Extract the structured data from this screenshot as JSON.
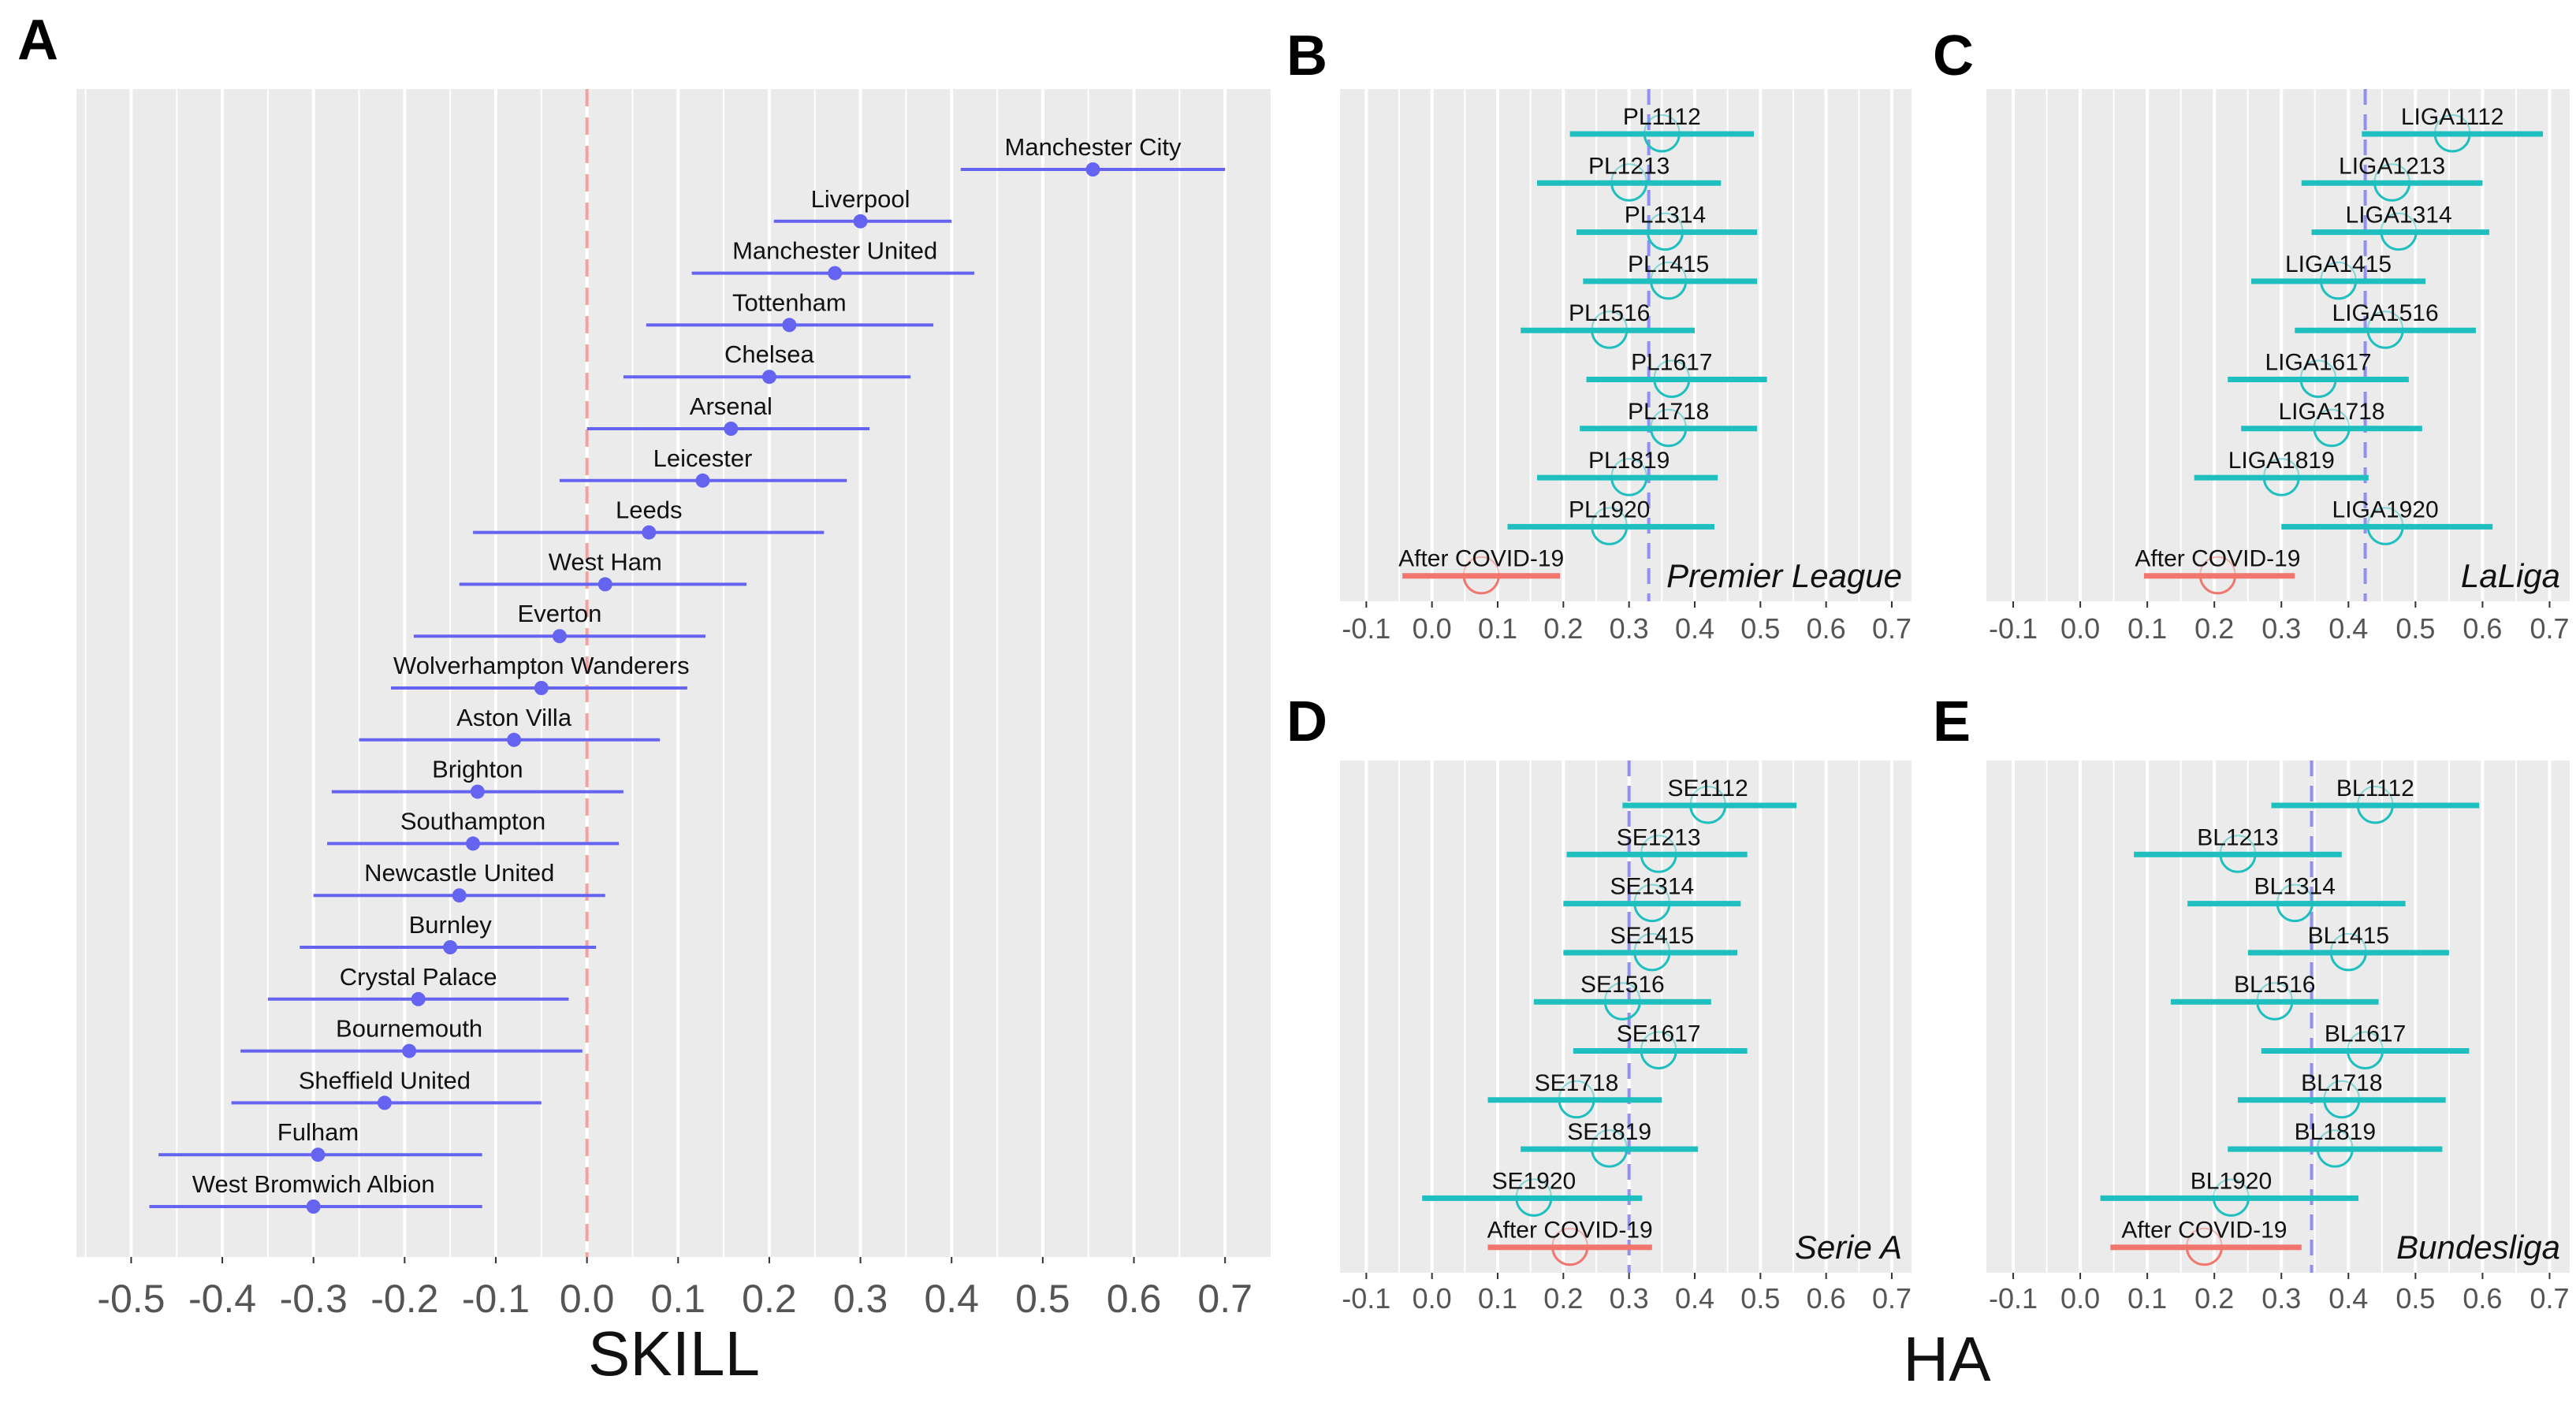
{
  "figure": {
    "x_title_left": "SKILL",
    "x_title_right": "HA"
  },
  "colors": {
    "panel_bg": "#ebebeb",
    "grid": "#ffffff",
    "skill_series": "#6464f0",
    "ha_series": "#1fbfbf",
    "covid_series": "#f0766e",
    "zero_line": "#f4a0a0",
    "mean_line": "#9090f0"
  },
  "chart_data": [
    {
      "panel": "A",
      "type": "scatter",
      "title": "",
      "xlabel": "SKILL",
      "ylabel": "",
      "xlim": [
        -0.56,
        0.75
      ],
      "xticks": [
        "-0.5",
        "-0.4",
        "-0.3",
        "-0.2",
        "-0.1",
        "0.0",
        "0.1",
        "0.2",
        "0.3",
        "0.4",
        "0.5",
        "0.6",
        "0.7"
      ],
      "reference_line": 0.0,
      "points": [
        {
          "label": "Manchester City",
          "value": 0.555,
          "low": 0.41,
          "high": 0.7
        },
        {
          "label": "Liverpool",
          "value": 0.3,
          "low": 0.205,
          "high": 0.4
        },
        {
          "label": "Manchester United",
          "value": 0.272,
          "low": 0.115,
          "high": 0.425
        },
        {
          "label": "Tottenham",
          "value": 0.222,
          "low": 0.065,
          "high": 0.38
        },
        {
          "label": "Chelsea",
          "value": 0.2,
          "low": 0.04,
          "high": 0.355
        },
        {
          "label": "Arsenal",
          "value": 0.158,
          "low": 0.0,
          "high": 0.31
        },
        {
          "label": "Leicester",
          "value": 0.127,
          "low": -0.03,
          "high": 0.285
        },
        {
          "label": "Leeds",
          "value": 0.068,
          "low": -0.125,
          "high": 0.26
        },
        {
          "label": "West Ham",
          "value": 0.02,
          "low": -0.14,
          "high": 0.175
        },
        {
          "label": "Everton",
          "value": -0.03,
          "low": -0.19,
          "high": 0.13
        },
        {
          "label": "Wolverhampton Wanderers",
          "value": -0.05,
          "low": -0.215,
          "high": 0.11
        },
        {
          "label": "Aston Villa",
          "value": -0.08,
          "low": -0.25,
          "high": 0.08
        },
        {
          "label": "Brighton",
          "value": -0.12,
          "low": -0.28,
          "high": 0.04
        },
        {
          "label": "Southampton",
          "value": -0.125,
          "low": -0.285,
          "high": 0.035
        },
        {
          "label": "Newcastle United",
          "value": -0.14,
          "low": -0.3,
          "high": 0.02
        },
        {
          "label": "Burnley",
          "value": -0.15,
          "low": -0.315,
          "high": 0.01
        },
        {
          "label": "Crystal Palace",
          "value": -0.185,
          "low": -0.35,
          "high": -0.02
        },
        {
          "label": "Bournemouth",
          "value": -0.195,
          "low": -0.38,
          "high": -0.005
        },
        {
          "label": "Sheffield United",
          "value": -0.222,
          "low": -0.39,
          "high": -0.05
        },
        {
          "label": "Fulham",
          "value": -0.295,
          "low": -0.47,
          "high": -0.115
        },
        {
          "label": "West Bromwich Albion",
          "value": -0.3,
          "low": -0.48,
          "high": -0.115
        }
      ]
    },
    {
      "panel": "B",
      "type": "scatter",
      "league": "Premier League",
      "xlabel": "HA",
      "xlim": [
        -0.14,
        0.73
      ],
      "xticks": [
        "-0.1",
        "0.0",
        "0.1",
        "0.2",
        "0.3",
        "0.4",
        "0.5",
        "0.6",
        "0.7"
      ],
      "mean_line": 0.33,
      "points": [
        {
          "label": "PL1112",
          "value": 0.35,
          "low": 0.21,
          "high": 0.49,
          "covid": false
        },
        {
          "label": "PL1213",
          "value": 0.3,
          "low": 0.16,
          "high": 0.44,
          "covid": false
        },
        {
          "label": "PL1314",
          "value": 0.355,
          "low": 0.22,
          "high": 0.495,
          "covid": false
        },
        {
          "label": "PL1415",
          "value": 0.36,
          "low": 0.23,
          "high": 0.495,
          "covid": false
        },
        {
          "label": "PL1516",
          "value": 0.27,
          "low": 0.135,
          "high": 0.4,
          "covid": false
        },
        {
          "label": "PL1617",
          "value": 0.365,
          "low": 0.235,
          "high": 0.51,
          "covid": false
        },
        {
          "label": "PL1718",
          "value": 0.36,
          "low": 0.225,
          "high": 0.495,
          "covid": false
        },
        {
          "label": "PL1819",
          "value": 0.3,
          "low": 0.16,
          "high": 0.435,
          "covid": false
        },
        {
          "label": "PL1920",
          "value": 0.27,
          "low": 0.115,
          "high": 0.43,
          "covid": false
        },
        {
          "label": "After COVID-19",
          "value": 0.075,
          "low": -0.045,
          "high": 0.195,
          "covid": true
        }
      ]
    },
    {
      "panel": "C",
      "type": "scatter",
      "league": "LaLiga",
      "xlabel": "HA",
      "xlim": [
        -0.14,
        0.73
      ],
      "xticks": [
        "-0.1",
        "0.0",
        "0.1",
        "0.2",
        "0.3",
        "0.4",
        "0.5",
        "0.6",
        "0.7"
      ],
      "mean_line": 0.425,
      "points": [
        {
          "label": "LIGA1112",
          "value": 0.555,
          "low": 0.42,
          "high": 0.69,
          "covid": false
        },
        {
          "label": "LIGA1213",
          "value": 0.465,
          "low": 0.33,
          "high": 0.6,
          "covid": false
        },
        {
          "label": "LIGA1314",
          "value": 0.475,
          "low": 0.345,
          "high": 0.61,
          "covid": false
        },
        {
          "label": "LIGA1415",
          "value": 0.385,
          "low": 0.255,
          "high": 0.515,
          "covid": false
        },
        {
          "label": "LIGA1516",
          "value": 0.455,
          "low": 0.32,
          "high": 0.59,
          "covid": false
        },
        {
          "label": "LIGA1617",
          "value": 0.355,
          "low": 0.22,
          "high": 0.49,
          "covid": false
        },
        {
          "label": "LIGA1718",
          "value": 0.375,
          "low": 0.24,
          "high": 0.51,
          "covid": false
        },
        {
          "label": "LIGA1819",
          "value": 0.3,
          "low": 0.17,
          "high": 0.43,
          "covid": false
        },
        {
          "label": "LIGA1920",
          "value": 0.455,
          "low": 0.3,
          "high": 0.615,
          "covid": false
        },
        {
          "label": "After COVID-19",
          "value": 0.205,
          "low": 0.095,
          "high": 0.32,
          "covid": true
        }
      ]
    },
    {
      "panel": "D",
      "type": "scatter",
      "league": "Serie A",
      "xlabel": "HA",
      "xlim": [
        -0.14,
        0.73
      ],
      "xticks": [
        "-0.1",
        "0.0",
        "0.1",
        "0.2",
        "0.3",
        "0.4",
        "0.5",
        "0.6",
        "0.7"
      ],
      "mean_line": 0.3,
      "points": [
        {
          "label": "SE1112",
          "value": 0.42,
          "low": 0.29,
          "high": 0.555,
          "covid": false
        },
        {
          "label": "SE1213",
          "value": 0.345,
          "low": 0.205,
          "high": 0.48,
          "covid": false
        },
        {
          "label": "SE1314",
          "value": 0.335,
          "low": 0.2,
          "high": 0.47,
          "covid": false
        },
        {
          "label": "SE1415",
          "value": 0.335,
          "low": 0.2,
          "high": 0.465,
          "covid": false
        },
        {
          "label": "SE1516",
          "value": 0.29,
          "low": 0.155,
          "high": 0.425,
          "covid": false
        },
        {
          "label": "SE1617",
          "value": 0.345,
          "low": 0.215,
          "high": 0.48,
          "covid": false
        },
        {
          "label": "SE1718",
          "value": 0.22,
          "low": 0.085,
          "high": 0.35,
          "covid": false
        },
        {
          "label": "SE1819",
          "value": 0.27,
          "low": 0.135,
          "high": 0.405,
          "covid": false
        },
        {
          "label": "SE1920",
          "value": 0.155,
          "low": -0.015,
          "high": 0.32,
          "covid": false
        },
        {
          "label": "After COVID-19",
          "value": 0.21,
          "low": 0.085,
          "high": 0.335,
          "covid": true
        }
      ]
    },
    {
      "panel": "E",
      "type": "scatter",
      "league": "Bundesliga",
      "xlabel": "HA",
      "xlim": [
        -0.14,
        0.73
      ],
      "xticks": [
        "-0.1",
        "0.0",
        "0.1",
        "0.2",
        "0.3",
        "0.4",
        "0.5",
        "0.6",
        "0.7"
      ],
      "mean_line": 0.345,
      "points": [
        {
          "label": "BL1112",
          "value": 0.44,
          "low": 0.285,
          "high": 0.595,
          "covid": false
        },
        {
          "label": "BL1213",
          "value": 0.235,
          "low": 0.08,
          "high": 0.39,
          "covid": false
        },
        {
          "label": "BL1314",
          "value": 0.32,
          "low": 0.16,
          "high": 0.485,
          "covid": false
        },
        {
          "label": "BL1415",
          "value": 0.4,
          "low": 0.25,
          "high": 0.55,
          "covid": false
        },
        {
          "label": "BL1516",
          "value": 0.29,
          "low": 0.135,
          "high": 0.445,
          "covid": false
        },
        {
          "label": "BL1617",
          "value": 0.425,
          "low": 0.27,
          "high": 0.58,
          "covid": false
        },
        {
          "label": "BL1718",
          "value": 0.39,
          "low": 0.235,
          "high": 0.545,
          "covid": false
        },
        {
          "label": "BL1819",
          "value": 0.38,
          "low": 0.22,
          "high": 0.54,
          "covid": false
        },
        {
          "label": "BL1920",
          "value": 0.225,
          "low": 0.03,
          "high": 0.415,
          "covid": false
        },
        {
          "label": "After COVID-19",
          "value": 0.185,
          "low": 0.045,
          "high": 0.33,
          "covid": true
        }
      ]
    }
  ]
}
